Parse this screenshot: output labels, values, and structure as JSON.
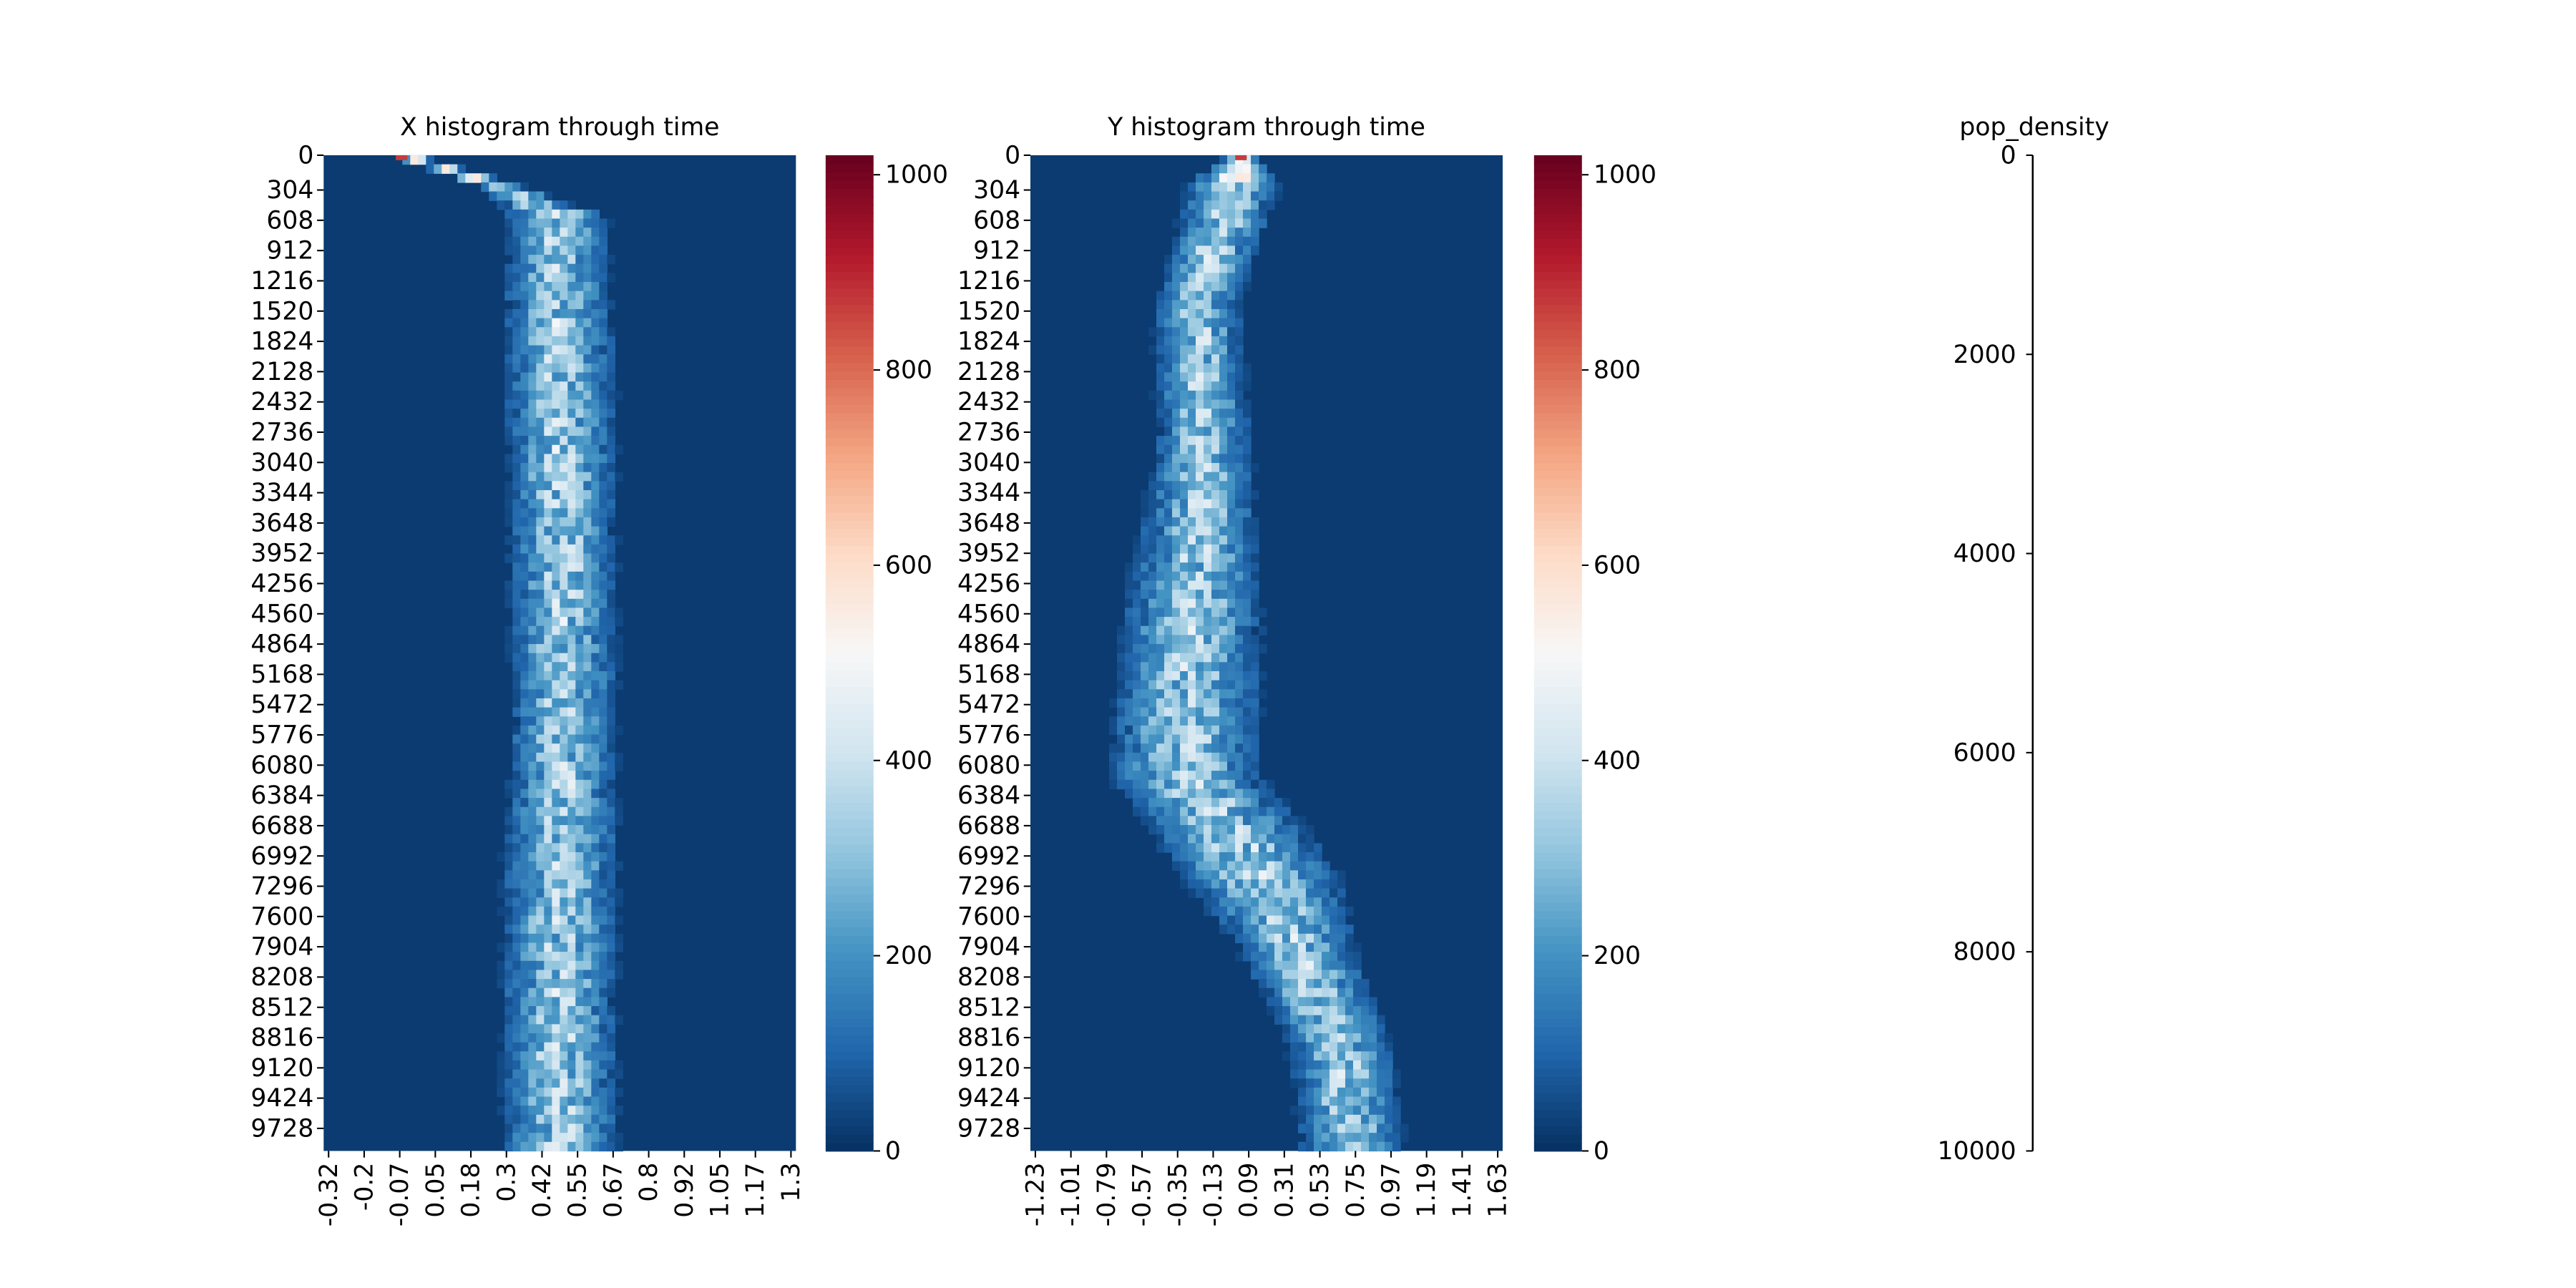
{
  "chart_data": [
    {
      "type": "heatmap",
      "title": "X histogram through time",
      "xlabel": "",
      "ylabel": "",
      "x_tick_labels": [
        "-0.32",
        "-0.2",
        "-0.07",
        "0.05",
        "0.18",
        "0.3",
        "0.42",
        "0.55",
        "0.67",
        "0.8",
        "0.92",
        "1.05",
        "1.17",
        "1.3"
      ],
      "y_tick_labels": [
        "0",
        "304",
        "608",
        "912",
        "1216",
        "1520",
        "1824",
        "2128",
        "2432",
        "2736",
        "3040",
        "3344",
        "3648",
        "3952",
        "4256",
        "4560",
        "4864",
        "5168",
        "5472",
        "5776",
        "6080",
        "6384",
        "6688",
        "6992",
        "7296",
        "7600",
        "7904",
        "8208",
        "8512",
        "8816",
        "9120",
        "9424",
        "9728"
      ],
      "y_range": [
        0,
        10000
      ],
      "x_range": [
        -0.32,
        1.3
      ],
      "ridge": {
        "time": [
          0,
          300,
          600,
          2000,
          4000,
          6000,
          8000,
          10000
        ],
        "x_center": [
          -0.05,
          0.28,
          0.48,
          0.49,
          0.5,
          0.5,
          0.49,
          0.49
        ],
        "x_spread": [
          0.03,
          0.05,
          0.12,
          0.13,
          0.13,
          0.13,
          0.14,
          0.14
        ]
      },
      "colorbar": {
        "colormap": "RdBu_r",
        "min": 0,
        "max": 1020,
        "ticks": [
          "0",
          "200",
          "400",
          "600",
          "800",
          "1000"
        ]
      }
    },
    {
      "type": "heatmap",
      "title": "Y histogram through time",
      "xlabel": "",
      "ylabel": "",
      "x_tick_labels": [
        "-1.23",
        "-1.01",
        "-0.79",
        "-0.57",
        "-0.35",
        "-0.13",
        "0.09",
        "0.31",
        "0.53",
        "0.75",
        "0.97",
        "1.19",
        "1.41",
        "1.63"
      ],
      "y_tick_labels": [
        "0",
        "304",
        "608",
        "912",
        "1216",
        "1520",
        "1824",
        "2128",
        "2432",
        "2736",
        "3040",
        "3344",
        "3648",
        "3952",
        "4256",
        "4560",
        "4864",
        "5168",
        "5472",
        "5776",
        "6080",
        "6384",
        "6688",
        "6992",
        "7296",
        "7600",
        "7904",
        "8208",
        "8512",
        "8816",
        "9120",
        "9424",
        "9728"
      ],
      "y_range": [
        0,
        10000
      ],
      "x_range": [
        -1.23,
        1.63
      ],
      "ridge": {
        "time": [
          0,
          300,
          1500,
          3000,
          4600,
          6200,
          7200,
          8000,
          9000,
          10000
        ],
        "x_center": [
          0.05,
          0.0,
          -0.22,
          -0.18,
          -0.25,
          -0.3,
          0.15,
          0.4,
          0.65,
          0.72
        ],
        "x_spread": [
          0.05,
          0.2,
          0.18,
          0.2,
          0.3,
          0.32,
          0.35,
          0.25,
          0.22,
          0.22
        ]
      },
      "colorbar": {
        "colormap": "RdBu_r",
        "min": 0,
        "max": 1020,
        "ticks": [
          "0",
          "200",
          "400",
          "600",
          "800",
          "1000"
        ]
      }
    },
    {
      "type": "line",
      "title": "pop_density",
      "xlabel": "",
      "ylabel": "",
      "y_tick_labels": [
        "0",
        "2000",
        "4000",
        "6000",
        "8000",
        "10000"
      ],
      "ylim": [
        0,
        10000
      ],
      "y_inverted": true,
      "series": []
    }
  ]
}
